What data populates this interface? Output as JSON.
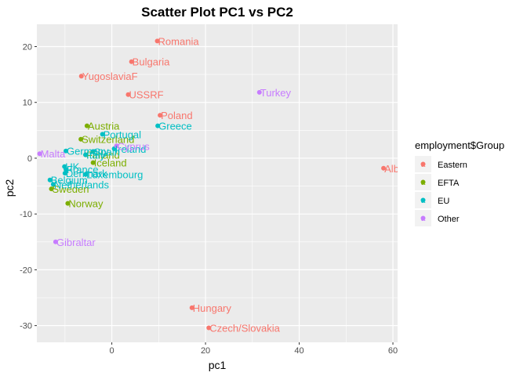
{
  "chart_data": {
    "type": "scatter",
    "title": "Scatter Plot PC1 vs PC2",
    "xlabel": "pc1",
    "ylabel": "pc2",
    "xlim": [
      -16,
      61
    ],
    "ylim": [
      -33,
      24
    ],
    "x_ticks": [
      0,
      20,
      40,
      60
    ],
    "y_ticks": [
      -30,
      -20,
      -10,
      0,
      10,
      20
    ],
    "grid": true,
    "legend": {
      "title": "employment$Group",
      "placement": "right",
      "entries": [
        {
          "name": "Eastern",
          "color": "#F8766D"
        },
        {
          "name": "EFTA",
          "color": "#7CAE00"
        },
        {
          "name": "EU",
          "color": "#00BFC4"
        },
        {
          "name": "Other",
          "color": "#C77CFF"
        }
      ]
    },
    "points": [
      {
        "label": "Romania",
        "x": 9.7,
        "y": 21.0,
        "group": "Eastern"
      },
      {
        "label": "Bulgaria",
        "x": 4.2,
        "y": 17.3,
        "group": "Eastern"
      },
      {
        "label": "YugoslaviaF",
        "x": -6.5,
        "y": 14.7,
        "group": "Eastern"
      },
      {
        "label": "USSRF",
        "x": 3.5,
        "y": 11.4,
        "group": "Eastern"
      },
      {
        "label": "Poland",
        "x": 10.3,
        "y": 7.7,
        "group": "Eastern"
      },
      {
        "label": "Albania",
        "x": 58.0,
        "y": -1.8,
        "group": "Eastern"
      },
      {
        "label": "Hungary",
        "x": 17.1,
        "y": -26.8,
        "group": "Eastern"
      },
      {
        "label": "Czech/Slovakia",
        "x": 20.7,
        "y": -30.4,
        "group": "Eastern"
      },
      {
        "label": "Austria",
        "x": -5.3,
        "y": 5.8,
        "group": "EFTA"
      },
      {
        "label": "Switzerland",
        "x": -6.6,
        "y": 3.4,
        "group": "EFTA"
      },
      {
        "label": "Finland",
        "x": -5.6,
        "y": 0.6,
        "group": "EFTA"
      },
      {
        "label": "Iceland",
        "x": -4.0,
        "y": -0.8,
        "group": "EFTA"
      },
      {
        "label": "Norway",
        "x": -9.4,
        "y": -8.1,
        "group": "EFTA"
      },
      {
        "label": "Sweden",
        "x": -12.9,
        "y": -5.5,
        "group": "EFTA"
      },
      {
        "label": "Portugal",
        "x": -2.0,
        "y": 4.3,
        "group": "EU"
      },
      {
        "label": "Greece",
        "x": 9.8,
        "y": 5.8,
        "group": "EU"
      },
      {
        "label": "Germany",
        "x": -9.8,
        "y": 1.3,
        "group": "EU"
      },
      {
        "label": "Spain",
        "x": -4.0,
        "y": 1.2,
        "group": "EU"
      },
      {
        "label": "Ireland",
        "x": 0.5,
        "y": 1.7,
        "group": "EU"
      },
      {
        "label": "Italy",
        "x": -5.6,
        "y": 0.6,
        "group": "EU"
      },
      {
        "label": "UK",
        "x": -10.1,
        "y": -1.5,
        "group": "EU"
      },
      {
        "label": "France",
        "x": -9.8,
        "y": -2.0,
        "group": "EU"
      },
      {
        "label": "Denmark",
        "x": -10.0,
        "y": -2.7,
        "group": "EU"
      },
      {
        "label": "Luxembourg",
        "x": -5.6,
        "y": -2.9,
        "group": "EU"
      },
      {
        "label": "Belgium",
        "x": -13.2,
        "y": -3.9,
        "group": "EU"
      },
      {
        "label": "Netherlands",
        "x": -12.5,
        "y": -4.7,
        "group": "EU"
      },
      {
        "label": "Turkey",
        "x": 31.5,
        "y": 11.8,
        "group": "Other"
      },
      {
        "label": "Malta",
        "x": -15.4,
        "y": 0.8,
        "group": "Other"
      },
      {
        "label": "Cyprus",
        "x": 1.0,
        "y": 2.2,
        "group": "Other"
      },
      {
        "label": "Gibraltar",
        "x": -12.0,
        "y": -15.0,
        "group": "Other"
      }
    ]
  }
}
